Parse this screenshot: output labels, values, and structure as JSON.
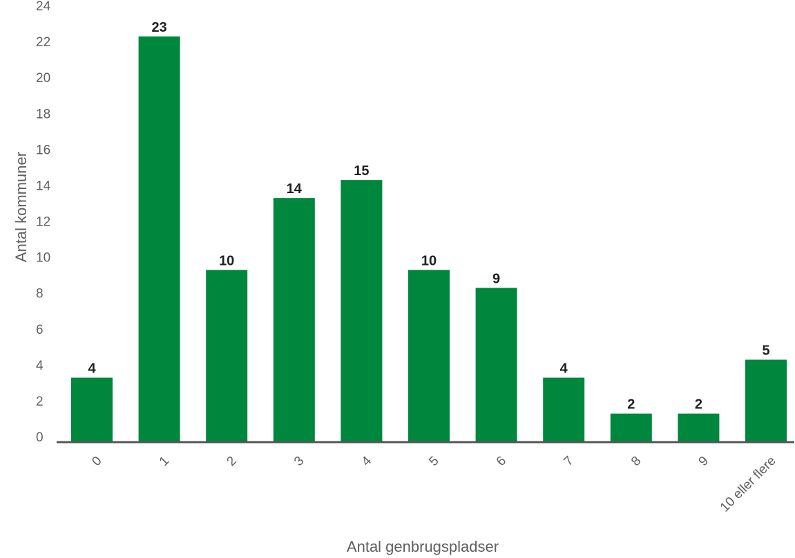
{
  "chart_data": {
    "type": "bar",
    "categories": [
      "0",
      "1",
      "2",
      "3",
      "4",
      "5",
      "6",
      "7",
      "8",
      "9",
      "10 eller flere"
    ],
    "values": [
      4,
      23,
      10,
      14,
      15,
      10,
      9,
      4,
      2,
      2,
      5
    ],
    "data_labels": [
      "4",
      "23",
      "10",
      "14",
      "15",
      "10",
      "9",
      "4",
      "2",
      "2",
      "5"
    ],
    "xlabel": "Antal genbrugspladser",
    "ylabel": "Antal kommuner",
    "ylim": [
      0,
      24
    ],
    "yticks": [
      0,
      2,
      4,
      6,
      8,
      10,
      12,
      14,
      16,
      18,
      20,
      22,
      24
    ],
    "grid": false,
    "legend": "none",
    "colors": {
      "bar": "#00873e",
      "axis": "#555555",
      "tick_text": "#5f5f5f",
      "data_label_text": "#202020"
    }
  }
}
